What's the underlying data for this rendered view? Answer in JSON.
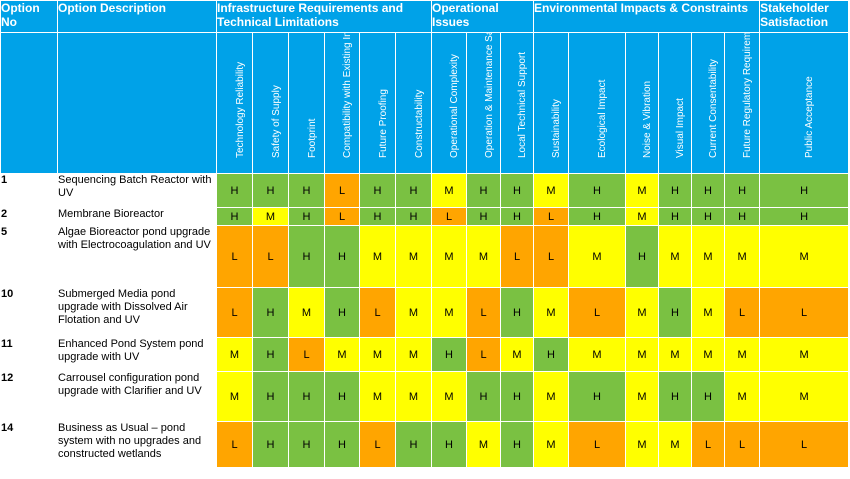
{
  "headers": {
    "option_no": "Option No",
    "option_desc": "Option Description",
    "groups": [
      {
        "label": "Infrastructure Requirements and Technical Limitations",
        "span": 6
      },
      {
        "label": "Operational Issues",
        "span": 3
      },
      {
        "label": "Environmental Impacts & Constraints",
        "span": 6
      },
      {
        "label": "Stakeholder Satisfaction",
        "span": 1
      }
    ],
    "criteria": [
      "Technology Reliability",
      "Safety of Supply",
      "Footprint",
      "Compatibility with Existing Infrastructure",
      "Future Proofing",
      "Constructability",
      "Operational Complexity",
      "Operation & Maintenance Safety",
      "Local Technical Support",
      "Sustainability",
      "Ecological Impact",
      "Noise & Vibration",
      "Visual Impact",
      "Current Consentability",
      "Future Regulatory Requirements",
      "Public Acceptance"
    ]
  },
  "rows": [
    {
      "no": "1",
      "desc": "Sequencing Batch Reactor with UV",
      "ratings": [
        "H",
        "H",
        "H",
        "L",
        "H",
        "H",
        "M",
        "H",
        "H",
        "M",
        "H",
        "M",
        "H",
        "H",
        "H",
        "H"
      ]
    },
    {
      "no": "2",
      "desc": "Membrane Bioreactor",
      "ratings": [
        "H",
        "M",
        "H",
        "L",
        "H",
        "H",
        "L",
        "H",
        "H",
        "L",
        "H",
        "M",
        "H",
        "H",
        "H",
        "H"
      ]
    },
    {
      "no": "5",
      "desc": "Algae Bioreactor pond upgrade with Electrocoagulation and UV",
      "ratings": [
        "L",
        "L",
        "H",
        "H",
        "M",
        "M",
        "M",
        "M",
        "L",
        "L",
        "M",
        "H",
        "M",
        "M",
        "M",
        "M"
      ]
    },
    {
      "no": "10",
      "desc": "Submerged Media pond upgrade with Dissolved Air Flotation and UV",
      "ratings": [
        "L",
        "H",
        "M",
        "H",
        "L",
        "M",
        "M",
        "L",
        "H",
        "M",
        "L",
        "M",
        "H",
        "M",
        "L",
        "L"
      ]
    },
    {
      "no": "11",
      "desc": "Enhanced Pond System pond upgrade with UV",
      "ratings": [
        "M",
        "H",
        "L",
        "M",
        "M",
        "M",
        "H",
        "L",
        "M",
        "H",
        "M",
        "M",
        "M",
        "M",
        "M",
        "M"
      ]
    },
    {
      "no": "12",
      "desc": "Carrousel configuration pond upgrade with Clarifier and UV",
      "ratings": [
        "M",
        "H",
        "H",
        "H",
        "M",
        "M",
        "M",
        "H",
        "H",
        "M",
        "H",
        "M",
        "H",
        "H",
        "M",
        "M"
      ]
    },
    {
      "no": "14",
      "desc": "Business as Usual – pond system with no upgrades and constructed wetlands",
      "ratings": [
        "L",
        "H",
        "H",
        "H",
        "L",
        "H",
        "H",
        "M",
        "H",
        "M",
        "L",
        "M",
        "M",
        "L",
        "L",
        "L"
      ]
    }
  ],
  "colors": {
    "H": "#7ac142",
    "M": "#ffff00",
    "L": "#ffa500",
    "header": "#00a2e8"
  }
}
